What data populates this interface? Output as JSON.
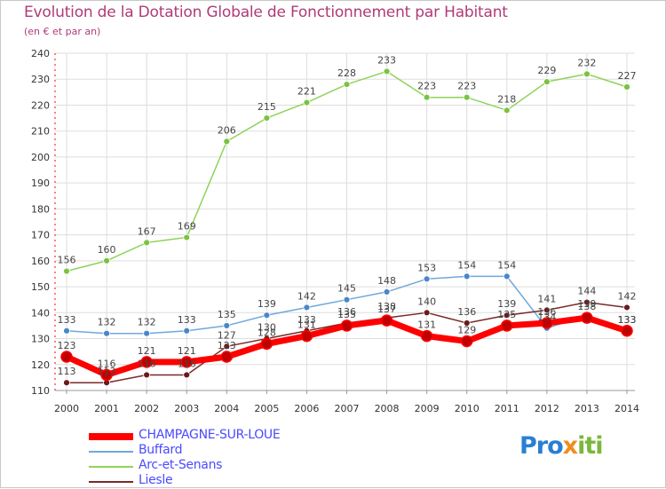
{
  "header": {
    "title": "Evolution de la Dotation Globale de Fonctionnement par Habitant",
    "subtitle": "(en € et par an)"
  },
  "brand": {
    "part1": "Pro",
    "part2": "x",
    "part3": "iti"
  },
  "colors": {
    "axis": "#ff0000",
    "grid": "#dddddd",
    "label": "#444444"
  },
  "chart_data": {
    "type": "line",
    "title": "Evolution de la Dotation Globale de Fonctionnement par Habitant",
    "subtitle": "(en € et par an)",
    "x": [
      "2000",
      "2001",
      "2002",
      "2003",
      "2004",
      "2005",
      "2006",
      "2007",
      "2008",
      "2009",
      "2010",
      "2011",
      "2012",
      "2013",
      "2014"
    ],
    "ylim": [
      110,
      240
    ],
    "yticks": [
      110,
      120,
      130,
      140,
      150,
      160,
      170,
      180,
      190,
      200,
      210,
      220,
      230,
      240
    ],
    "grid": true,
    "legend_position": "bottom-left",
    "series": [
      {
        "name": "CHAMPAGNE-SUR-LOUE",
        "color": "#ff0000",
        "marker": "#c00000",
        "width": 7,
        "values": [
          123,
          116,
          121,
          121,
          123,
          128,
          131,
          135,
          137,
          131,
          129,
          135,
          136,
          138,
          133
        ]
      },
      {
        "name": "Buffard",
        "color": "#6fa8dc",
        "marker": "#4a86c8",
        "width": 1.5,
        "values": [
          133,
          132,
          132,
          133,
          135,
          139,
          142,
          145,
          148,
          153,
          154,
          154,
          134,
          139,
          133
        ]
      },
      {
        "name": "Arc-et-Senans",
        "color": "#8fd35a",
        "marker": "#7cc242",
        "width": 1.5,
        "values": [
          156,
          160,
          167,
          169,
          206,
          215,
          221,
          228,
          233,
          223,
          223,
          218,
          229,
          232,
          227
        ]
      },
      {
        "name": "Liesle",
        "color": "#7a2a2a",
        "marker": "#6b1a1a",
        "width": 1.5,
        "values": [
          113,
          113,
          116,
          116,
          127,
          130,
          133,
          136,
          138,
          140,
          136,
          139,
          141,
          144,
          142
        ]
      }
    ]
  }
}
